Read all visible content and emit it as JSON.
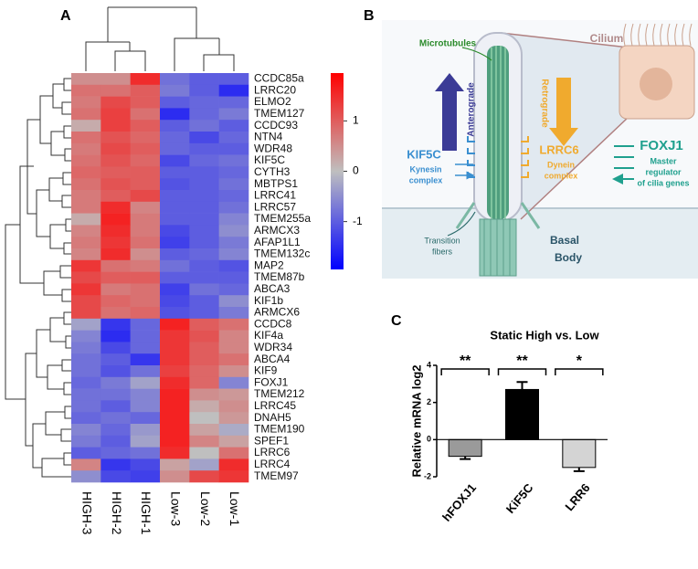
{
  "panel_labels": [
    "A",
    "B",
    "C"
  ],
  "chart_data": [
    {
      "type": "heatmap",
      "rows": [
        "CCDC85a",
        "LRRC20",
        "ELMO2",
        "TMEM127",
        "CCDC93",
        "NTN4",
        "WDR48",
        "KIF5C",
        "CYTH3",
        "MBTPS1",
        "LRRC41",
        "LRRC57",
        "TMEM255a",
        "ARMCX3",
        "AFAP1L1",
        "TMEM132c",
        "MAP2",
        "TMEM87b",
        "ABCA3",
        "KIF1b",
        "ARMCX6",
        "CCDC8",
        "KIF4a",
        "WDR34",
        "ABCA4",
        "KIF9",
        "FOXJ1",
        "TMEM212",
        "LRRC45",
        "DNAH5",
        "TMEM190",
        "SPEF1",
        "LRRC6",
        "LRRC4",
        "TMEM97"
      ],
      "columns": [
        "HIGH-3",
        "HIGH-2",
        "HIGH-1",
        "Low-3",
        "Low-2",
        "Low-1"
      ],
      "values": [
        [
          0.5,
          0.5,
          1.5,
          -0.8,
          -1,
          -1
        ],
        [
          0.8,
          0.8,
          1,
          -0.7,
          -1,
          -1.5
        ],
        [
          0.7,
          1.2,
          1,
          -1,
          -0.9,
          -0.9
        ],
        [
          0.8,
          1.3,
          0.8,
          -1.5,
          -0.9,
          -0.7
        ],
        [
          0.2,
          1.3,
          1,
          -1,
          -0.8,
          -1
        ],
        [
          0.8,
          1.1,
          0.9,
          -0.9,
          -1.2,
          -0.9
        ],
        [
          0.7,
          1.2,
          1,
          -0.9,
          -1,
          -1
        ],
        [
          0.8,
          1.1,
          0.9,
          -1.2,
          -0.9,
          -0.8
        ],
        [
          0.9,
          1,
          1,
          -1,
          -1,
          -0.9
        ],
        [
          0.8,
          1.1,
          1,
          -1.1,
          -1,
          -0.8
        ],
        [
          0.7,
          1,
          1.2,
          -1,
          -1,
          -0.9
        ],
        [
          0.7,
          1.5,
          0.6,
          -1,
          -1,
          -0.8
        ],
        [
          0.2,
          1.6,
          0.7,
          -1,
          -1,
          -0.6
        ],
        [
          0.6,
          1.5,
          0.7,
          -1.2,
          -1,
          -0.5
        ],
        [
          0.7,
          1.4,
          0.8,
          -1.3,
          -1,
          -0.7
        ],
        [
          0.6,
          1.5,
          0.5,
          -1,
          -0.9,
          -0.6
        ],
        [
          1.4,
          0.8,
          0.7,
          -0.8,
          -1,
          -1.1
        ],
        [
          1.2,
          1,
          1,
          -1,
          -1,
          -1
        ],
        [
          1.4,
          0.7,
          0.8,
          -1.3,
          -0.8,
          -0.9
        ],
        [
          1.2,
          0.9,
          0.8,
          -1.2,
          -1,
          -0.5
        ],
        [
          1.2,
          0.8,
          0.9,
          -1.1,
          -1,
          -0.7
        ],
        [
          -0.3,
          -1.4,
          -0.9,
          1.6,
          1,
          0.8
        ],
        [
          -0.6,
          -1.5,
          -0.9,
          1.4,
          1.1,
          0.6
        ],
        [
          -0.7,
          -1.2,
          -0.9,
          1.4,
          1,
          0.6
        ],
        [
          -0.8,
          -1,
          -1.4,
          1.4,
          1,
          0.8
        ],
        [
          -0.8,
          -1.1,
          -0.8,
          1.3,
          0.9,
          0.5
        ],
        [
          -0.9,
          -0.7,
          -0.3,
          1.5,
          0.9,
          -0.6
        ],
        [
          -0.8,
          -0.8,
          -0.6,
          1.6,
          0.5,
          0.4
        ],
        [
          -0.8,
          -1,
          -0.6,
          1.6,
          0.2,
          0.5
        ],
        [
          -0.9,
          -0.8,
          -0.9,
          1.6,
          0,
          0.4
        ],
        [
          -0.6,
          -0.9,
          -0.4,
          1.6,
          0.3,
          -0.2
        ],
        [
          -0.7,
          -1,
          -0.3,
          1.6,
          0.6,
          0.3
        ],
        [
          -1,
          -0.9,
          -0.8,
          1.5,
          0,
          0.8
        ],
        [
          0.6,
          -1.4,
          -1.2,
          0.3,
          -0.3,
          1.5
        ],
        [
          -0.5,
          -1.2,
          -1.3,
          0.5,
          1.2,
          1.4
        ]
      ],
      "zlim": [
        -1.95,
        1.95
      ],
      "zticks": [
        1,
        0,
        -1
      ],
      "colors": {
        "low": "#0000ff",
        "mid": "#bfbfbf",
        "high": "#ff0000"
      }
    },
    {
      "type": "bar",
      "title": "Static High vs. Low",
      "ylabel": "Relative mRNA log2",
      "categories": [
        "hFOXJ1",
        "KiF5C",
        "LRR6"
      ],
      "values": [
        -0.9,
        2.7,
        -1.5
      ],
      "errors": [
        0.15,
        0.4,
        0.2
      ],
      "colors": [
        "#9a9a9a",
        "#000000",
        "#d4d4d4"
      ],
      "significance": [
        "**",
        "**",
        "*"
      ],
      "ylim": [
        -2,
        4
      ],
      "yticks": [
        -2,
        0,
        2,
        4
      ]
    }
  ],
  "diagram": {
    "microtubules": "Microtubules",
    "cilium": "Cilium",
    "anterograde": "Anterograde",
    "retrograde": "Retrograde",
    "kif5c": "KIF5C",
    "kinesin": [
      "Kynesin",
      "complex"
    ],
    "lrrc6": "LRRC6",
    "dynein": [
      "Dynein",
      "complex"
    ],
    "foxj1": "FOXJ1",
    "foxj1_note": [
      "Master",
      "regulator",
      "of cilia genes"
    ],
    "transition": [
      "Transition",
      "fibers"
    ],
    "basal": [
      "Basal",
      "Body"
    ]
  }
}
